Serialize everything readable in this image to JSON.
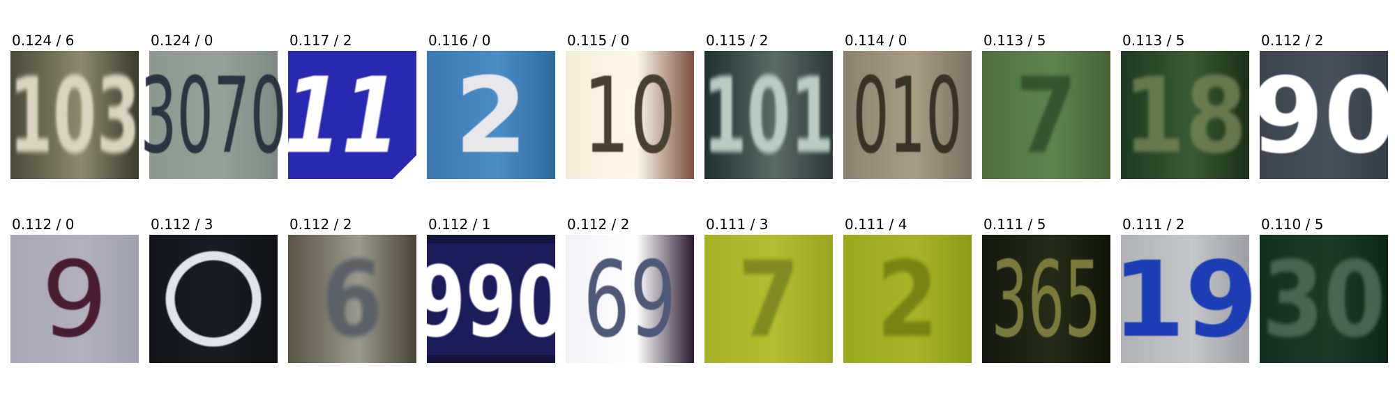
{
  "figure": {
    "rows": [
      [
        {
          "score": "0.124",
          "label": "6",
          "digits": "103",
          "bg": [
            "#4a4a3a",
            "#8c8a6e",
            "#3a3a2c"
          ],
          "fg": "#d8d4c0",
          "style": "blur"
        },
        {
          "score": "0.124",
          "label": "0",
          "digits": "3070",
          "bg": [
            "#8a9890",
            "#94a29a",
            "#7c8a84"
          ],
          "fg": "#2c3440",
          "style": "condensed"
        },
        {
          "score": "0.117",
          "label": "2",
          "digits": "11",
          "bg": [
            "#2828b0",
            "#1e20a0",
            "#ffffff"
          ],
          "fg": "#ffffff",
          "style": "sign"
        },
        {
          "score": "0.116",
          "label": "0",
          "digits": "2",
          "bg": [
            "#3a78b0",
            "#4c8cc4",
            "#2e6aa0"
          ],
          "fg": "#e8e8ec",
          "style": "bold"
        },
        {
          "score": "0.115",
          "label": "0",
          "digits": "10",
          "bg": [
            "#f4ecd8",
            "#fff8ea",
            "#7a5040"
          ],
          "fg": "#4a4030",
          "style": "condensed"
        },
        {
          "score": "0.115",
          "label": "2",
          "digits": "101",
          "bg": [
            "#1e3030",
            "#5a6c66",
            "#2a3838"
          ],
          "fg": "#b8ccc4",
          "style": "blur"
        },
        {
          "score": "0.114",
          "label": "0",
          "digits": "010",
          "bg": [
            "#8c8270",
            "#a89c86",
            "#7c7262"
          ],
          "fg": "#3a3028",
          "style": "condensed"
        },
        {
          "score": "0.113",
          "label": "5",
          "digits": "7",
          "bg": [
            "#4e7040",
            "#5e8450",
            "#446438"
          ],
          "fg": "#2c4426",
          "style": "faint"
        },
        {
          "score": "0.113",
          "label": "5",
          "digits": "18",
          "bg": [
            "#1e3a20",
            "#3a5a34",
            "#1a3018"
          ],
          "fg": "#7a8a5a",
          "style": "faint"
        },
        {
          "score": "0.112",
          "label": "2",
          "digits": "90",
          "bg": [
            "#3c4450",
            "#48505c",
            "#343c48"
          ],
          "fg": "#ffffff",
          "style": "bold"
        }
      ],
      [
        {
          "score": "0.112",
          "label": "0",
          "digits": "9",
          "bg": [
            "#a8a6b4",
            "#b2b0be",
            "#a0a0ae"
          ],
          "fg": "#4a1a30",
          "style": "thin"
        },
        {
          "score": "0.112",
          "label": "3",
          "digits": "O",
          "bg": [
            "#14161c",
            "#1a1c22",
            "#101216"
          ],
          "fg": "#e0e4ea",
          "style": "ring"
        },
        {
          "score": "0.112",
          "label": "2",
          "digits": "6",
          "bg": [
            "#5a5444",
            "#9a9a8e",
            "#4a4436"
          ],
          "fg": "#5c6068",
          "style": "blur"
        },
        {
          "score": "0.112",
          "label": "1",
          "digits": "990",
          "bg": [
            "#1a1a50",
            "#ffffff",
            "#14143c"
          ],
          "fg": "#ffffff",
          "style": "plate"
        },
        {
          "score": "0.112",
          "label": "2",
          "digits": "69",
          "bg": [
            "#f2f2f6",
            "#ffffff",
            "#2a1830"
          ],
          "fg": "#505878",
          "style": "condensed"
        },
        {
          "score": "0.111",
          "label": "3",
          "digits": "7",
          "bg": [
            "#a8b024",
            "#b4bc30",
            "#9aa420"
          ],
          "fg": "#707a1c",
          "style": "faint"
        },
        {
          "score": "0.111",
          "label": "4",
          "digits": "2",
          "bg": [
            "#9aa81c",
            "#a8b428",
            "#8c9a18"
          ],
          "fg": "#6a7410",
          "style": "faint"
        },
        {
          "score": "0.111",
          "label": "5",
          "digits": "365",
          "bg": [
            "#14180e",
            "#262c18",
            "#101408"
          ],
          "fg": "#7a7a3c",
          "style": "condensed"
        },
        {
          "score": "0.111",
          "label": "2",
          "digits": "19",
          "bg": [
            "#b0b2b6",
            "#c4c6ca",
            "#9c9ea4"
          ],
          "fg": "#1a3cb4",
          "style": "bold"
        },
        {
          "score": "0.110",
          "label": "5",
          "digits": "30",
          "bg": [
            "#12301e",
            "#1c3c28",
            "#0e2818"
          ],
          "fg": "#5a7460",
          "style": "faint"
        }
      ]
    ]
  }
}
